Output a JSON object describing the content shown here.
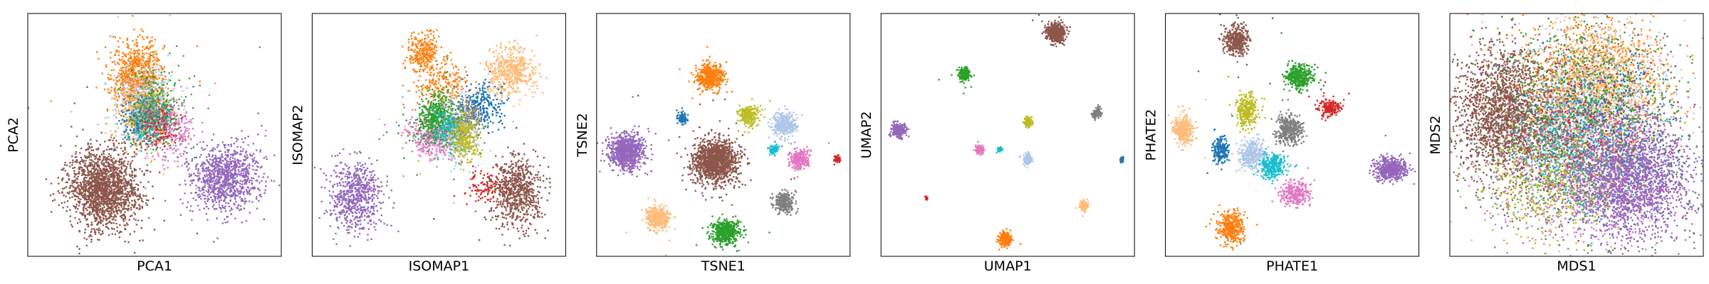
{
  "colors": {
    "blue": "#1f77b4",
    "orange": "#ff7f0e",
    "light_orange": "#ffbb78",
    "green": "#2ca02c",
    "red": "#d62728",
    "purple": "#9467bd",
    "brown": "#8c564b",
    "pink": "#e377c2",
    "gray": "#7f7f7f",
    "olive": "#bcbd22",
    "cyan": "#17becf",
    "light_blue": "#aec7e8"
  },
  "chart_data": [
    {
      "type": "scatter",
      "xlabel": "PCA1",
      "ylabel": "PCA2",
      "xlim": [
        0,
        100
      ],
      "ylim": [
        0,
        100
      ],
      "grid": false,
      "clusters": [
        {
          "color": "orange",
          "x": 43,
          "y": 73,
          "sx": 5,
          "sy": 8,
          "count": 800
        },
        {
          "color": "light_blue",
          "x": 47,
          "y": 62,
          "sx": 6,
          "sy": 8,
          "count": 500
        },
        {
          "color": "green",
          "x": 50,
          "y": 60,
          "sx": 5,
          "sy": 7,
          "count": 350
        },
        {
          "color": "pink",
          "x": 56,
          "y": 52,
          "sx": 5,
          "sy": 6,
          "count": 250
        },
        {
          "color": "light_orange",
          "x": 44,
          "y": 58,
          "sx": 5,
          "sy": 7,
          "count": 250
        },
        {
          "color": "olive",
          "x": 47,
          "y": 56,
          "sx": 4,
          "sy": 5,
          "count": 150
        },
        {
          "color": "blue",
          "x": 45,
          "y": 55,
          "sx": 4,
          "sy": 5,
          "count": 150
        },
        {
          "color": "cyan",
          "x": 48,
          "y": 54,
          "sx": 4,
          "sy": 5,
          "count": 120
        },
        {
          "color": "gray",
          "x": 49,
          "y": 57,
          "sx": 4,
          "sy": 5,
          "count": 120
        },
        {
          "color": "red",
          "x": 52,
          "y": 53,
          "sx": 4,
          "sy": 5,
          "count": 100
        },
        {
          "color": "brown",
          "x": 30,
          "y": 28,
          "sx": 7,
          "sy": 8,
          "count": 1800
        },
        {
          "color": "purple",
          "x": 78,
          "y": 32,
          "sx": 7,
          "sy": 7,
          "count": 1000
        }
      ]
    },
    {
      "type": "scatter",
      "xlabel": "ISOMAP1",
      "ylabel": "ISOMAP2",
      "xlim": [
        0,
        100
      ],
      "ylim": [
        0,
        100
      ],
      "grid": false,
      "clusters": [
        {
          "color": "orange",
          "x": 44,
          "y": 84,
          "sx": 3,
          "sy": 4,
          "count": 300
        },
        {
          "color": "orange",
          "x": 51,
          "y": 71,
          "sx": 5,
          "sy": 5,
          "count": 200
        },
        {
          "color": "light_orange",
          "x": 78,
          "y": 76,
          "sx": 5,
          "sy": 5,
          "count": 500
        },
        {
          "color": "blue",
          "x": 67,
          "y": 62,
          "sx": 4,
          "sy": 5,
          "count": 250
        },
        {
          "color": "light_blue",
          "x": 56,
          "y": 52,
          "sx": 5,
          "sy": 6,
          "count": 400
        },
        {
          "color": "pink",
          "x": 47,
          "y": 50,
          "sx": 5,
          "sy": 5,
          "count": 350
        },
        {
          "color": "gray",
          "x": 60,
          "y": 56,
          "sx": 4,
          "sy": 5,
          "count": 200
        },
        {
          "color": "green",
          "x": 49,
          "y": 57,
          "sx": 4,
          "sy": 5,
          "count": 450
        },
        {
          "color": "olive",
          "x": 60,
          "y": 49,
          "sx": 3,
          "sy": 5,
          "count": 300
        },
        {
          "color": "cyan",
          "x": 53,
          "y": 53,
          "sx": 3,
          "sy": 4,
          "count": 100
        },
        {
          "color": "red",
          "x": 69,
          "y": 28,
          "sx": 4,
          "sy": 4,
          "count": 120
        },
        {
          "color": "brown",
          "x": 81,
          "y": 27,
          "sx": 5,
          "sy": 7,
          "count": 700
        },
        {
          "color": "purple",
          "x": 17,
          "y": 25,
          "sx": 5,
          "sy": 7,
          "count": 650
        }
      ]
    },
    {
      "type": "scatter",
      "xlabel": "TSNE1",
      "ylabel": "TSNE2",
      "xlim": [
        0,
        100
      ],
      "ylim": [
        0,
        100
      ],
      "grid": false,
      "clusters": [
        {
          "color": "orange",
          "x": 45,
          "y": 74,
          "sx": 2.6,
          "sy": 2.6,
          "count": 500
        },
        {
          "color": "blue",
          "x": 34,
          "y": 57,
          "sx": 1.0,
          "sy": 1.2,
          "count": 80
        },
        {
          "color": "olive",
          "x": 60,
          "y": 58,
          "sx": 2.0,
          "sy": 2.0,
          "count": 250
        },
        {
          "color": "light_blue",
          "x": 74,
          "y": 54,
          "sx": 2.3,
          "sy": 2.6,
          "count": 350
        },
        {
          "color": "purple",
          "x": 12,
          "y": 43,
          "sx": 3.7,
          "sy": 3.5,
          "count": 800
        },
        {
          "color": "brown",
          "x": 47,
          "y": 39,
          "sx": 4.5,
          "sy": 4.5,
          "count": 1400
        },
        {
          "color": "cyan",
          "x": 70,
          "y": 44,
          "sx": 1.0,
          "sy": 1.0,
          "count": 70
        },
        {
          "color": "pink",
          "x": 80,
          "y": 40,
          "sx": 2.0,
          "sy": 2.2,
          "count": 250
        },
        {
          "color": "red",
          "x": 95,
          "y": 40,
          "sx": 0.6,
          "sy": 0.7,
          "count": 40
        },
        {
          "color": "gray",
          "x": 74,
          "y": 22,
          "sx": 2.0,
          "sy": 2.0,
          "count": 250
        },
        {
          "color": "light_orange",
          "x": 24,
          "y": 16,
          "sx": 2.3,
          "sy": 2.3,
          "count": 350
        },
        {
          "color": "green",
          "x": 51,
          "y": 10,
          "sx": 2.8,
          "sy": 2.6,
          "count": 500
        }
      ]
    },
    {
      "type": "scatter",
      "xlabel": "UMAP1",
      "ylabel": "UMAP2",
      "xlim": [
        0,
        100
      ],
      "ylim": [
        0,
        100
      ],
      "grid": false,
      "clusters": [
        {
          "color": "brown",
          "x": 69,
          "y": 92,
          "sx": 1.8,
          "sy": 1.9,
          "count": 500
        },
        {
          "color": "green",
          "x": 33,
          "y": 75,
          "sx": 1.1,
          "sy": 1.3,
          "count": 250
        },
        {
          "color": "purple",
          "x": 7,
          "y": 52,
          "sx": 1.3,
          "sy": 1.3,
          "count": 300
        },
        {
          "color": "gray",
          "x": 85,
          "y": 59,
          "sx": 0.9,
          "sy": 1.0,
          "count": 120
        },
        {
          "color": "olive",
          "x": 58,
          "y": 55,
          "sx": 0.8,
          "sy": 1.0,
          "count": 120
        },
        {
          "color": "pink",
          "x": 39,
          "y": 44,
          "sx": 0.8,
          "sy": 0.9,
          "count": 120
        },
        {
          "color": "cyan",
          "x": 47,
          "y": 44,
          "sx": 0.5,
          "sy": 0.5,
          "count": 40
        },
        {
          "color": "light_blue",
          "x": 58,
          "y": 40,
          "sx": 0.8,
          "sy": 1.0,
          "count": 150
        },
        {
          "color": "blue",
          "x": 95,
          "y": 40,
          "sx": 0.4,
          "sy": 0.6,
          "count": 30
        },
        {
          "color": "red",
          "x": 18,
          "y": 24,
          "sx": 0.3,
          "sy": 0.4,
          "count": 15
        },
        {
          "color": "light_orange",
          "x": 80,
          "y": 21,
          "sx": 0.9,
          "sy": 1.0,
          "count": 120
        },
        {
          "color": "orange",
          "x": 49,
          "y": 7,
          "sx": 1.2,
          "sy": 1.3,
          "count": 250
        }
      ]
    },
    {
      "type": "scatter",
      "xlabel": "PHATE1",
      "ylabel": "PHATE2",
      "xlim": [
        0,
        100
      ],
      "ylim": [
        0,
        100
      ],
      "grid": false,
      "clusters": [
        {
          "color": "brown",
          "x": 28,
          "y": 89,
          "sx": 2.4,
          "sy": 3.0,
          "count": 400
        },
        {
          "color": "green",
          "x": 53,
          "y": 74,
          "sx": 2.8,
          "sy": 2.4,
          "count": 400
        },
        {
          "color": "olive",
          "x": 32,
          "y": 60,
          "sx": 2.0,
          "sy": 3.2,
          "count": 300
        },
        {
          "color": "red",
          "x": 65,
          "y": 61,
          "sx": 2.0,
          "sy": 1.6,
          "count": 200
        },
        {
          "color": "gray",
          "x": 49,
          "y": 52,
          "sx": 2.6,
          "sy": 2.8,
          "count": 350
        },
        {
          "color": "light_orange",
          "x": 7,
          "y": 52,
          "sx": 2.0,
          "sy": 3.2,
          "count": 300
        },
        {
          "color": "blue",
          "x": 22,
          "y": 44,
          "sx": 1.6,
          "sy": 2.6,
          "count": 200
        },
        {
          "color": "light_blue",
          "x": 34,
          "y": 42,
          "sx": 2.8,
          "sy": 2.8,
          "count": 350
        },
        {
          "color": "cyan",
          "x": 42,
          "y": 37,
          "sx": 2.6,
          "sy": 2.4,
          "count": 300
        },
        {
          "color": "pink",
          "x": 51,
          "y": 26,
          "sx": 2.8,
          "sy": 2.4,
          "count": 300
        },
        {
          "color": "orange",
          "x": 26,
          "y": 12,
          "sx": 2.6,
          "sy": 3.2,
          "count": 400
        },
        {
          "color": "purple",
          "x": 89,
          "y": 36,
          "sx": 3.2,
          "sy": 2.4,
          "count": 500
        }
      ]
    },
    {
      "type": "scatter",
      "xlabel": "MDS1",
      "ylabel": "MDS2",
      "xlim": [
        0,
        100
      ],
      "ylim": [
        0,
        100
      ],
      "grid": false,
      "clusters": [
        {
          "color": "brown",
          "x": 23,
          "y": 59,
          "sx": 11,
          "sy": 13,
          "count": 2200
        },
        {
          "color": "orange",
          "x": 58,
          "y": 72,
          "sx": 14,
          "sy": 13,
          "count": 1100
        },
        {
          "color": "light_orange",
          "x": 60,
          "y": 68,
          "sx": 14,
          "sy": 15,
          "count": 900
        },
        {
          "color": "light_blue",
          "x": 55,
          "y": 58,
          "sx": 16,
          "sy": 18,
          "count": 900
        },
        {
          "color": "green",
          "x": 55,
          "y": 55,
          "sx": 18,
          "sy": 20,
          "count": 900
        },
        {
          "color": "pink",
          "x": 50,
          "y": 35,
          "sx": 16,
          "sy": 16,
          "count": 700
        },
        {
          "color": "gray",
          "x": 45,
          "y": 40,
          "sx": 15,
          "sy": 14,
          "count": 500
        },
        {
          "color": "olive",
          "x": 40,
          "y": 30,
          "sx": 14,
          "sy": 12,
          "count": 500
        },
        {
          "color": "cyan",
          "x": 50,
          "y": 45,
          "sx": 14,
          "sy": 15,
          "count": 400
        },
        {
          "color": "blue",
          "x": 62,
          "y": 60,
          "sx": 15,
          "sy": 15,
          "count": 400
        },
        {
          "color": "red",
          "x": 55,
          "y": 50,
          "sx": 16,
          "sy": 16,
          "count": 250
        },
        {
          "color": "purple",
          "x": 72,
          "y": 32,
          "sx": 12,
          "sy": 12,
          "count": 2000
        }
      ]
    }
  ]
}
